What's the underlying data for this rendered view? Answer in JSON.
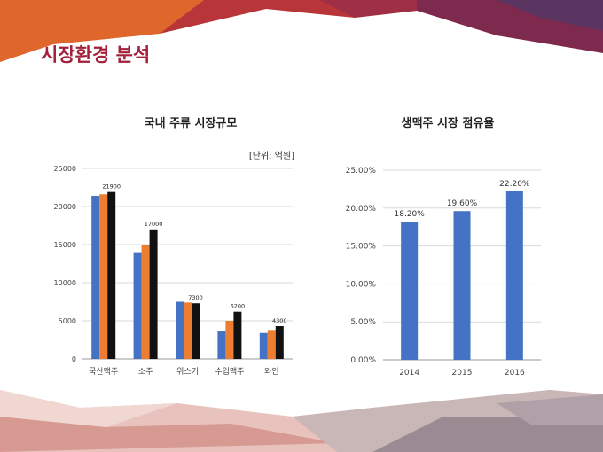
{
  "slide": {
    "title": "시장환경 분석"
  },
  "colors": {
    "accent": "#a3203a",
    "series1": "#4472c4",
    "series2": "#ed7d31",
    "series3": "#111111",
    "share_bar": "#4472c4"
  },
  "chart_data": [
    {
      "type": "bar",
      "title": "국내 주류 시장규모",
      "unit": "[단위: 억원]",
      "categories": [
        "국산맥주",
        "소주",
        "위스키",
        "수입맥주",
        "와인"
      ],
      "series": [
        {
          "values": [
            21400,
            14000,
            7500,
            3600,
            3400
          ]
        },
        {
          "values": [
            21600,
            15000,
            7400,
            5000,
            3800
          ]
        },
        {
          "values": [
            21900,
            17000,
            7300,
            6200,
            4300
          ]
        }
      ],
      "data_labels": [
        "21900",
        "17000",
        "7300",
        "6200",
        "4300"
      ],
      "ylim": [
        0,
        25000
      ],
      "yticks": [
        "0",
        "5000",
        "10000",
        "15000",
        "20000",
        "25000"
      ],
      "grid": true,
      "legend": "none"
    },
    {
      "type": "bar",
      "title": "생맥주 시장 점유율",
      "categories": [
        "2014",
        "2015",
        "2016"
      ],
      "values": [
        18.2,
        19.6,
        22.2
      ],
      "data_labels": [
        "18.20%",
        "19.60%",
        "22.20%"
      ],
      "ylim": [
        0,
        25
      ],
      "yticks": [
        "0.00%",
        "5.00%",
        "10.00%",
        "15.00%",
        "20.00%",
        "25.00%"
      ],
      "grid": true,
      "legend": "none"
    }
  ]
}
